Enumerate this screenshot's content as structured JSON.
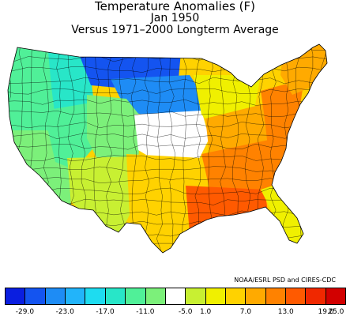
{
  "title": {
    "line1": "Temperature Anomalies (F)",
    "line2": "Jan 1950",
    "line3": "Versus 1971–2000 Longterm Average"
  },
  "credit": "NOAA/ESRL PSD and CIRES-CDC",
  "legend": {
    "swatches": [
      {
        "name": "very-cold-1",
        "color": "#0a1ee0"
      },
      {
        "name": "very-cold-2",
        "color": "#1454f0"
      },
      {
        "name": "cold-1",
        "color": "#1e8cf5"
      },
      {
        "name": "cold-2",
        "color": "#22b4fa"
      },
      {
        "name": "cold-3",
        "color": "#1edcf0"
      },
      {
        "name": "cool-1",
        "color": "#28e6c8"
      },
      {
        "name": "cool-2",
        "color": "#50f098"
      },
      {
        "name": "cool-3",
        "color": "#7cf07a"
      },
      {
        "name": "neutral",
        "color": "#ffffff"
      },
      {
        "name": "mild-1",
        "color": "#c8f032"
      },
      {
        "name": "mild-2",
        "color": "#f0f000"
      },
      {
        "name": "warm-1",
        "color": "#ffd200"
      },
      {
        "name": "warm-2",
        "color": "#ffaa00"
      },
      {
        "name": "warm-3",
        "color": "#ff8200"
      },
      {
        "name": "hot-1",
        "color": "#ff5a00"
      },
      {
        "name": "hot-2",
        "color": "#f02800"
      },
      {
        "name": "hot-3",
        "color": "#d20000"
      }
    ],
    "labels": [
      "-29.0",
      "-23.0",
      "-17.0",
      "-11.0",
      "-5.0",
      "1.0",
      "7.0",
      "13.0",
      "19.0",
      "25.0"
    ]
  },
  "map": {
    "regions": [
      {
        "name": "pacific-northwest",
        "color": "#50f098"
      },
      {
        "name": "northern-rockies",
        "color": "#28e6c8"
      },
      {
        "name": "northern-plains",
        "color": "#1454f0"
      },
      {
        "name": "upper-midwest",
        "color": "#1e8cf5"
      },
      {
        "name": "california",
        "color": "#7cf07a"
      },
      {
        "name": "great-basin",
        "color": "#50f098"
      },
      {
        "name": "central-rockies",
        "color": "#7cf07a"
      },
      {
        "name": "central-plains",
        "color": "#ffffff"
      },
      {
        "name": "southwest",
        "color": "#c8f032"
      },
      {
        "name": "southern-plains",
        "color": "#ffd200"
      },
      {
        "name": "great-lakes",
        "color": "#f0f000"
      },
      {
        "name": "ohio-valley",
        "color": "#ffaa00"
      },
      {
        "name": "southeast",
        "color": "#ff8200"
      },
      {
        "name": "gulf-coast",
        "color": "#ff5a00"
      },
      {
        "name": "mid-atlantic",
        "color": "#ff8200"
      },
      {
        "name": "new-england",
        "color": "#ffaa00"
      },
      {
        "name": "florida",
        "color": "#f0f000"
      }
    ]
  }
}
